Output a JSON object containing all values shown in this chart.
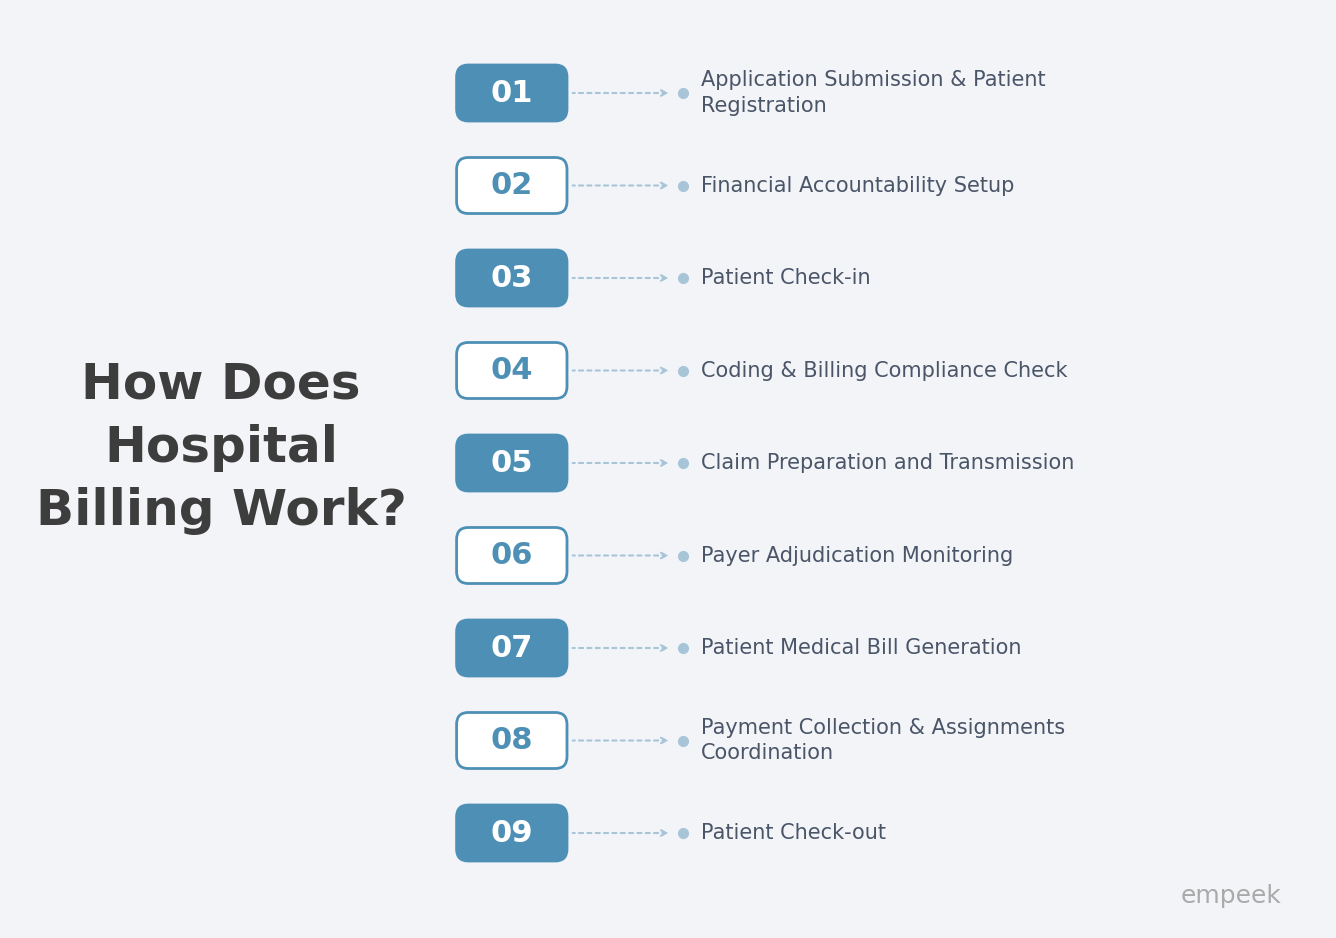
{
  "title": "How Does\nHospital\nBilling Work?",
  "title_color": "#3d3d3d",
  "title_fontsize": 36,
  "background_color": "#f2f4f7",
  "items": [
    {
      "num": "01",
      "label": "Application Submission & Patient\nRegistration",
      "filled": true
    },
    {
      "num": "02",
      "label": "Financial Accountability Setup",
      "filled": false
    },
    {
      "num": "03",
      "label": "Patient Check-in",
      "filled": true
    },
    {
      "num": "04",
      "label": "Coding & Billing Compliance Check",
      "filled": false
    },
    {
      "num": "05",
      "label": "Claim Preparation and Transmission",
      "filled": true
    },
    {
      "num": "06",
      "label": "Payer Adjudication Monitoring",
      "filled": false
    },
    {
      "num": "07",
      "label": "Patient Medical Bill Generation",
      "filled": true
    },
    {
      "num": "08",
      "label": "Payment Collection & Assignments\nCoordination",
      "filled": false
    },
    {
      "num": "09",
      "label": "Patient Check-out",
      "filled": true
    }
  ],
  "filled_box_color": "#4e8fb5",
  "filled_text_color": "#ffffff",
  "empty_box_color": "#ffffff",
  "empty_text_color": "#4e8fb5",
  "empty_border_color": "#4e8fb5",
  "label_color": "#4a5568",
  "label_fontsize": 15,
  "num_fontsize": 22,
  "arrow_color": "#a8c5d8",
  "dot_color": "#a8c5d8",
  "watermark_text": "empeek",
  "watermark_color": "#aaaaaa",
  "watermark_fontsize": 18
}
